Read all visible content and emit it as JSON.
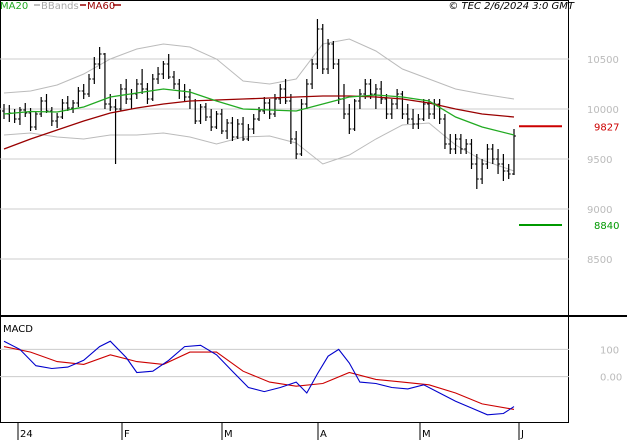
{
  "chart_data": {
    "type": "line",
    "legend": {
      "items": [
        {
          "name": "MA20",
          "color": "#22aa22"
        },
        {
          "name": "BBands",
          "color": "#aaaaaa"
        },
        {
          "name": "MA60",
          "color": "#990000"
        }
      ],
      "timestamp": "© TEC 2/6/2024 3:0 GMT",
      "placement": "top"
    },
    "x_labels": [
      "24",
      "F",
      "M",
      "A",
      "M",
      "J"
    ],
    "price_panel": {
      "ylim": [
        7950,
        10950
      ],
      "y_ticks": [
        8500,
        9000,
        9500,
        10000,
        10500
      ],
      "y_tick_labels": [
        "8500",
        "9000",
        "9500",
        "10000",
        "10500"
      ],
      "levels": [
        {
          "name": "resistance",
          "value": 9827,
          "label": "9827",
          "color": "#cc0000"
        },
        {
          "name": "support",
          "value": 8840,
          "label": "8840",
          "color": "#009900"
        }
      ],
      "ohlc_color": "#000000",
      "ohlc": [
        [
          0,
          9980,
          10050,
          9900,
          9950
        ],
        [
          2,
          9950,
          10040,
          9870,
          9960
        ],
        [
          4,
          9960,
          10000,
          9860,
          9900
        ],
        [
          6,
          9900,
          10020,
          9840,
          9990
        ],
        [
          8,
          9990,
          10060,
          9920,
          9960
        ],
        [
          10,
          9960,
          10010,
          9780,
          9820
        ],
        [
          12,
          9820,
          9980,
          9790,
          9950
        ],
        [
          14,
          9950,
          10120,
          9920,
          10080
        ],
        [
          16,
          10080,
          10150,
          9960,
          9980
        ],
        [
          18,
          9980,
          10020,
          9830,
          9880
        ],
        [
          20,
          9880,
          9960,
          9810,
          9920
        ],
        [
          22,
          9920,
          10100,
          9900,
          10060
        ],
        [
          24,
          10060,
          10130,
          9980,
          10010
        ],
        [
          26,
          10010,
          10090,
          9960,
          10060
        ],
        [
          28,
          10060,
          10220,
          10020,
          10180
        ],
        [
          30,
          10180,
          10250,
          10100,
          10150
        ],
        [
          32,
          10150,
          10350,
          10120,
          10300
        ],
        [
          34,
          10300,
          10520,
          10250,
          10450
        ],
        [
          36,
          10450,
          10620,
          10400,
          10550
        ],
        [
          38,
          10550,
          10560,
          10000,
          10050
        ],
        [
          40,
          10050,
          10150,
          9980,
          10020
        ],
        [
          42,
          10020,
          10100,
          9450,
          10000
        ],
        [
          44,
          10000,
          10250,
          9980,
          10200
        ],
        [
          46,
          10200,
          10300,
          10050,
          10100
        ],
        [
          48,
          10100,
          10200,
          10000,
          10150
        ],
        [
          50,
          10150,
          10300,
          10100,
          10250
        ],
        [
          52,
          10250,
          10400,
          10150,
          10200
        ],
        [
          54,
          10200,
          10260,
          10050,
          10100
        ],
        [
          56,
          10100,
          10350,
          10080,
          10300
        ],
        [
          58,
          10300,
          10420,
          10250,
          10350
        ],
        [
          60,
          10350,
          10480,
          10300,
          10450
        ],
        [
          62,
          10450,
          10550,
          10300,
          10320
        ],
        [
          64,
          10320,
          10380,
          10200,
          10250
        ],
        [
          66,
          10250,
          10300,
          10100,
          10180
        ],
        [
          68,
          10180,
          10250,
          10080,
          10120
        ],
        [
          70,
          10120,
          10200,
          10000,
          10080
        ],
        [
          72,
          10080,
          10100,
          9850,
          9880
        ],
        [
          74,
          9880,
          10050,
          9850,
          10020
        ],
        [
          76,
          10020,
          10060,
          9880,
          9920
        ],
        [
          78,
          9920,
          10000,
          9780,
          9820
        ],
        [
          80,
          9820,
          9980,
          9800,
          9950
        ],
        [
          82,
          9950,
          10000,
          9750,
          9780
        ],
        [
          84,
          9780,
          9900,
          9700,
          9860
        ],
        [
          86,
          9860,
          9920,
          9680,
          9720
        ],
        [
          88,
          9720,
          9900,
          9700,
          9850
        ],
        [
          90,
          9850,
          9920,
          9680,
          9700
        ],
        [
          92,
          9700,
          9850,
          9680,
          9800
        ],
        [
          94,
          9800,
          9950,
          9750,
          9900
        ],
        [
          96,
          9900,
          10020,
          9880,
          9980
        ],
        [
          98,
          9980,
          10120,
          9950,
          10060
        ],
        [
          100,
          10060,
          10100,
          9900,
          9950
        ],
        [
          102,
          9950,
          10150,
          9920,
          10100
        ],
        [
          104,
          10100,
          10250,
          10050,
          10200
        ],
        [
          106,
          10200,
          10300,
          10050,
          10080
        ],
        [
          108,
          10080,
          10150,
          9650,
          9700
        ],
        [
          110,
          9700,
          9780,
          9500,
          9550
        ],
        [
          112,
          9550,
          10100,
          9530,
          10050
        ],
        [
          114,
          10050,
          10300,
          10000,
          10250
        ],
        [
          116,
          10250,
          10500,
          10200,
          10450
        ],
        [
          118,
          10450,
          10900,
          10400,
          10800
        ],
        [
          120,
          10800,
          10850,
          10350,
          10400
        ],
        [
          122,
          10400,
          10700,
          10350,
          10650
        ],
        [
          124,
          10650,
          10680,
          10400,
          10450
        ],
        [
          126,
          10450,
          10500,
          10050,
          10100
        ],
        [
          128,
          10100,
          10250,
          9900,
          9950
        ],
        [
          130,
          9950,
          10050,
          9750,
          9800
        ],
        [
          132,
          9800,
          10100,
          9780,
          10080
        ],
        [
          134,
          10080,
          10200,
          10000,
          10150
        ],
        [
          136,
          10150,
          10300,
          10100,
          10250
        ],
        [
          138,
          10250,
          10300,
          10100,
          10150
        ],
        [
          140,
          10150,
          10250,
          10000,
          10200
        ],
        [
          142,
          10200,
          10280,
          10050,
          10100
        ],
        [
          144,
          10100,
          10150,
          9900,
          9950
        ],
        [
          146,
          9950,
          10100,
          9900,
          10050
        ],
        [
          148,
          10050,
          10200,
          10000,
          10150
        ],
        [
          150,
          10150,
          10180,
          9900,
          9950
        ],
        [
          152,
          9950,
          10050,
          9850,
          9900
        ],
        [
          154,
          9900,
          10000,
          9800,
          9850
        ],
        [
          156,
          9850,
          9950,
          9800,
          9900
        ],
        [
          158,
          9900,
          10100,
          9880,
          10050
        ],
        [
          160,
          10050,
          10100,
          9900,
          9950
        ],
        [
          162,
          9950,
          10100,
          9900,
          10050
        ],
        [
          164,
          10050,
          10100,
          9850,
          9900
        ],
        [
          166,
          9900,
          9950,
          9600,
          9650
        ],
        [
          168,
          9650,
          9750,
          9550,
          9600
        ],
        [
          170,
          9600,
          9750,
          9550,
          9700
        ],
        [
          172,
          9700,
          9750,
          9550,
          9600
        ],
        [
          174,
          9600,
          9700,
          9550,
          9650
        ],
        [
          176,
          9650,
          9700,
          9400,
          9450
        ],
        [
          178,
          9450,
          9550,
          9200,
          9300
        ],
        [
          180,
          9300,
          9500,
          9250,
          9450
        ],
        [
          182,
          9450,
          9650,
          9400,
          9600
        ],
        [
          184,
          9600,
          9650,
          9450,
          9500
        ],
        [
          186,
          9500,
          9600,
          9350,
          9450
        ],
        [
          188,
          9450,
          9550,
          9280,
          9380
        ],
        [
          190,
          9380,
          9450,
          9300,
          9350
        ],
        [
          192,
          9350,
          9800,
          9340,
          9730
        ]
      ],
      "ma20": [
        [
          0,
          9950
        ],
        [
          10,
          9975
        ],
        [
          20,
          9970
        ],
        [
          30,
          10020
        ],
        [
          40,
          10120
        ],
        [
          50,
          10160
        ],
        [
          60,
          10200
        ],
        [
          70,
          10170
        ],
        [
          80,
          10080
        ],
        [
          90,
          10000
        ],
        [
          100,
          9990
        ],
        [
          110,
          9980
        ],
        [
          120,
          10050
        ],
        [
          130,
          10120
        ],
        [
          140,
          10140
        ],
        [
          150,
          10120
        ],
        [
          160,
          10080
        ],
        [
          170,
          9920
        ],
        [
          180,
          9820
        ],
        [
          192,
          9740
        ]
      ],
      "ma60": [
        [
          0,
          9600
        ],
        [
          10,
          9700
        ],
        [
          20,
          9790
        ],
        [
          30,
          9880
        ],
        [
          40,
          9960
        ],
        [
          50,
          10010
        ],
        [
          60,
          10050
        ],
        [
          70,
          10080
        ],
        [
          80,
          10090
        ],
        [
          90,
          10100
        ],
        [
          100,
          10110
        ],
        [
          110,
          10120
        ],
        [
          120,
          10130
        ],
        [
          130,
          10130
        ],
        [
          140,
          10120
        ],
        [
          150,
          10100
        ],
        [
          160,
          10060
        ],
        [
          170,
          10000
        ],
        [
          180,
          9950
        ],
        [
          192,
          9920
        ]
      ],
      "bb_upper": [
        [
          0,
          10160
        ],
        [
          10,
          10180
        ],
        [
          20,
          10240
        ],
        [
          30,
          10350
        ],
        [
          40,
          10500
        ],
        [
          50,
          10600
        ],
        [
          60,
          10650
        ],
        [
          70,
          10620
        ],
        [
          80,
          10500
        ],
        [
          90,
          10280
        ],
        [
          100,
          10250
        ],
        [
          110,
          10300
        ],
        [
          120,
          10650
        ],
        [
          130,
          10700
        ],
        [
          140,
          10580
        ],
        [
          150,
          10400
        ],
        [
          160,
          10300
        ],
        [
          170,
          10200
        ],
        [
          180,
          10150
        ],
        [
          192,
          10100
        ]
      ],
      "bb_lower": [
        [
          0,
          9740
        ],
        [
          10,
          9760
        ],
        [
          20,
          9720
        ],
        [
          30,
          9700
        ],
        [
          40,
          9740
        ],
        [
          50,
          9740
        ],
        [
          60,
          9760
        ],
        [
          70,
          9720
        ],
        [
          80,
          9650
        ],
        [
          90,
          9720
        ],
        [
          100,
          9730
        ],
        [
          110,
          9660
        ],
        [
          120,
          9450
        ],
        [
          130,
          9540
        ],
        [
          140,
          9700
        ],
        [
          150,
          9840
        ],
        [
          160,
          9860
        ],
        [
          170,
          9640
        ],
        [
          180,
          9490
        ],
        [
          192,
          9380
        ]
      ]
    },
    "macd_panel": {
      "title": "MACD",
      "ylim": [
        -170,
        215
      ],
      "y_ticks": [
        100,
        0
      ],
      "y_tick_labels": [
        "100",
        "0.00"
      ],
      "macd_color": "#0000cc",
      "signal_color": "#cc0000",
      "macd": [
        [
          0,
          130
        ],
        [
          6,
          100
        ],
        [
          12,
          40
        ],
        [
          18,
          30
        ],
        [
          24,
          35
        ],
        [
          30,
          60
        ],
        [
          36,
          110
        ],
        [
          40,
          130
        ],
        [
          46,
          70
        ],
        [
          50,
          15
        ],
        [
          56,
          20
        ],
        [
          62,
          60
        ],
        [
          68,
          110
        ],
        [
          74,
          115
        ],
        [
          80,
          80
        ],
        [
          86,
          20
        ],
        [
          92,
          -40
        ],
        [
          98,
          -55
        ],
        [
          104,
          -40
        ],
        [
          110,
          -20
        ],
        [
          114,
          -60
        ],
        [
          118,
          10
        ],
        [
          122,
          75
        ],
        [
          126,
          100
        ],
        [
          130,
          50
        ],
        [
          134,
          -20
        ],
        [
          140,
          -25
        ],
        [
          146,
          -40
        ],
        [
          152,
          -45
        ],
        [
          158,
          -30
        ],
        [
          164,
          -60
        ],
        [
          170,
          -90
        ],
        [
          176,
          -115
        ],
        [
          182,
          -140
        ],
        [
          188,
          -135
        ],
        [
          192,
          -110
        ]
      ],
      "signal": [
        [
          0,
          110
        ],
        [
          10,
          90
        ],
        [
          20,
          55
        ],
        [
          30,
          45
        ],
        [
          40,
          80
        ],
        [
          50,
          55
        ],
        [
          60,
          45
        ],
        [
          70,
          90
        ],
        [
          80,
          90
        ],
        [
          90,
          20
        ],
        [
          100,
          -20
        ],
        [
          110,
          -35
        ],
        [
          120,
          -25
        ],
        [
          130,
          15
        ],
        [
          140,
          -10
        ],
        [
          150,
          -20
        ],
        [
          160,
          -30
        ],
        [
          170,
          -60
        ],
        [
          180,
          -100
        ],
        [
          192,
          -120
        ]
      ]
    }
  }
}
